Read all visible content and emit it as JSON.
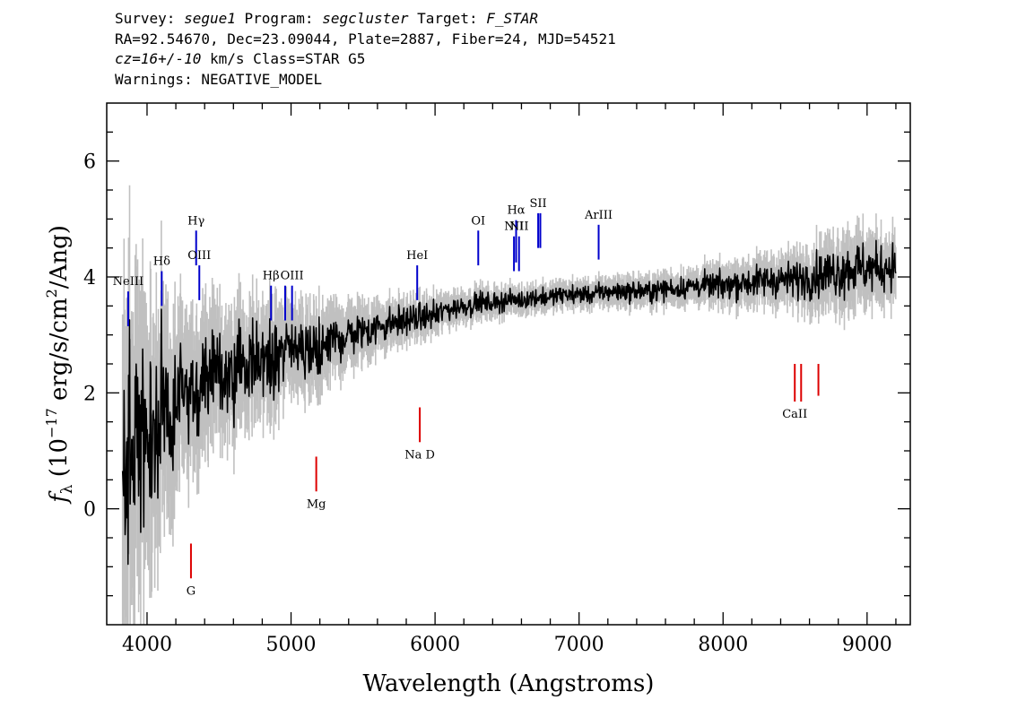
{
  "header": {
    "line1": {
      "survey_label": "Survey: ",
      "survey": "segue1",
      "program_label": " Program: ",
      "program": "segcluster",
      "target_label": " Target: ",
      "target": "F_STAR"
    },
    "line2": "RA=92.54670, Dec=23.09044, Plate=2887, Fiber=24, MJD=54521",
    "line3": {
      "cz_label": "cz=",
      "cz_value": "16+/-10",
      "cz_units": " km/s Class=STAR G5"
    },
    "line4": "Warnings: NEGATIVE_MODEL"
  },
  "chart_data": {
    "type": "line",
    "xlabel": "Wavelength (Angstroms)",
    "ylabel_parts": {
      "symbol": "f",
      "subscript": "λ",
      "open": " (10",
      "exp1": "−17",
      "mid": " erg/s/cm",
      "exp2": "2",
      "close": "/Ang)"
    },
    "xlim": [
      3720,
      9300
    ],
    "ylim": [
      -2.0,
      7.0
    ],
    "x_ticks": [
      4000,
      5000,
      6000,
      7000,
      8000,
      9000
    ],
    "x_tick_labels": [
      "4000",
      "5000",
      "6000",
      "7000",
      "8000",
      "9000"
    ],
    "y_ticks": [
      0,
      2,
      4,
      6
    ],
    "y_tick_labels": [
      "0",
      "2",
      "4",
      "6"
    ],
    "grid": false,
    "colors": {
      "flux": "#000000",
      "error_band": "#c0c0c0",
      "emission_marker": "#0000cc",
      "absorption_marker": "#dd0000"
    },
    "series": [
      {
        "name": "",
        "x": [
          3830,
          3900,
          4000,
          4100,
          4200,
          4300,
          4400,
          4500,
          4600,
          4700,
          4800,
          4900,
          5000,
          5100,
          5200,
          5300,
          5400,
          5500,
          5600,
          5700,
          5800,
          5900,
          6000,
          6100,
          6200,
          6300,
          6400,
          6500,
          6600,
          6700,
          6800,
          6900,
          7000,
          7100,
          7200,
          7300,
          7400,
          7500,
          7600,
          7700,
          7800,
          7900,
          8000,
          8100,
          8200,
          8300,
          8400,
          8500,
          8600,
          8700,
          8800,
          8900,
          9000,
          9100,
          9200
        ],
        "y": [
          0.6,
          1.0,
          1.3,
          1.6,
          1.85,
          2.05,
          2.2,
          2.3,
          2.4,
          2.5,
          2.55,
          2.65,
          2.7,
          2.75,
          2.8,
          2.9,
          3.0,
          3.05,
          3.15,
          3.2,
          3.25,
          3.3,
          3.35,
          3.45,
          3.5,
          3.55,
          3.55,
          3.6,
          3.6,
          3.65,
          3.65,
          3.7,
          3.7,
          3.7,
          3.75,
          3.75,
          3.75,
          3.75,
          3.8,
          3.8,
          3.85,
          3.85,
          3.85,
          3.9,
          3.9,
          3.95,
          3.95,
          3.95,
          4.0,
          4.05,
          4.1,
          4.15,
          4.15,
          4.15,
          4.2
        ],
        "noise": [
          3.0,
          2.4,
          2.0,
          1.7,
          1.4,
          1.2,
          1.05,
          0.95,
          0.9,
          0.85,
          0.8,
          0.75,
          0.7,
          0.65,
          0.6,
          0.55,
          0.5,
          0.45,
          0.4,
          0.35,
          0.3,
          0.3,
          0.28,
          0.26,
          0.24,
          0.22,
          0.22,
          0.2,
          0.2,
          0.2,
          0.2,
          0.2,
          0.2,
          0.2,
          0.22,
          0.22,
          0.22,
          0.22,
          0.24,
          0.24,
          0.26,
          0.28,
          0.3,
          0.32,
          0.34,
          0.36,
          0.38,
          0.4,
          0.45,
          0.5,
          0.55,
          0.6,
          0.55,
          0.5,
          0.5
        ]
      }
    ],
    "emission_lines": [
      {
        "label": "NeIII",
        "wavelength": 3869,
        "y_top": 3.75,
        "y_bottom": 3.15
      },
      {
        "label": "Hδ",
        "wavelength": 4102,
        "y_top": 4.1,
        "y_bottom": 3.5
      },
      {
        "label": "Hγ",
        "wavelength": 4341,
        "y_top": 4.8,
        "y_bottom": 4.2
      },
      {
        "label": "OIII",
        "wavelength": 4363,
        "y_top": 4.2,
        "y_bottom": 3.6
      },
      {
        "label": "Hβ",
        "wavelength": 4861,
        "y_top": 3.85,
        "y_bottom": 3.25
      },
      {
        "label": "",
        "wavelength": 4959,
        "y_top": 3.85,
        "y_bottom": 3.25
      },
      {
        "label": "OIII",
        "wavelength": 5007,
        "y_top": 3.85,
        "y_bottom": 3.25
      },
      {
        "label": "HeI",
        "wavelength": 5876,
        "y_top": 4.2,
        "y_bottom": 3.6
      },
      {
        "label": "OI",
        "wavelength": 6300,
        "y_top": 4.8,
        "y_bottom": 4.2
      },
      {
        "label": "NII",
        "wavelength": 6548,
        "y_top": 4.7,
        "y_bottom": 4.1
      },
      {
        "label": "Hα",
        "wavelength": 6563,
        "y_top": 4.98,
        "y_bottom": 4.25
      },
      {
        "label": "NII",
        "wavelength": 6583,
        "y_top": 4.7,
        "y_bottom": 4.1
      },
      {
        "label": "SII",
        "wavelength": 6716,
        "y_top": 5.1,
        "y_bottom": 4.5
      },
      {
        "label": "",
        "wavelength": 6731,
        "y_top": 5.1,
        "y_bottom": 4.5
      },
      {
        "label": "ArIII",
        "wavelength": 7136,
        "y_top": 4.9,
        "y_bottom": 4.3
      }
    ],
    "absorption_lines": [
      {
        "label": "G",
        "wavelength": 4305,
        "y_top": -0.6,
        "y_bottom": -1.2
      },
      {
        "label": "Mg",
        "wavelength": 5175,
        "y_top": 0.9,
        "y_bottom": 0.3
      },
      {
        "label": "Na D",
        "wavelength": 5894,
        "y_top": 1.75,
        "y_bottom": 1.15
      },
      {
        "label": "CaII",
        "wavelength": 8498,
        "y_top": 2.5,
        "y_bottom": 1.85
      },
      {
        "label": "",
        "wavelength": 8542,
        "y_top": 2.5,
        "y_bottom": 1.85
      },
      {
        "label": "",
        "wavelength": 8662,
        "y_top": 2.5,
        "y_bottom": 1.95
      }
    ]
  }
}
